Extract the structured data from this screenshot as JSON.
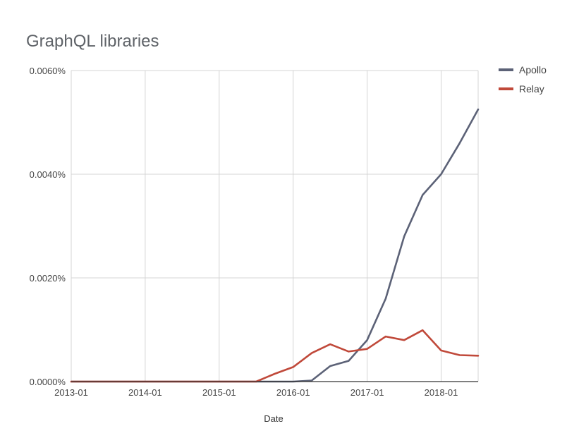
{
  "chart_data": {
    "type": "line",
    "title": "GraphQL libraries",
    "xlabel": "Date",
    "ylabel": "",
    "x_start": "2013-01",
    "x_end": "2018-07",
    "x_ticks": [
      "2013-01",
      "2014-01",
      "2015-01",
      "2016-01",
      "2017-01",
      "2018-01"
    ],
    "ylim": [
      0,
      0.006
    ],
    "y_ticks": [
      0,
      0.002,
      0.004,
      0.006
    ],
    "y_tick_labels": [
      "0.0000%",
      "0.0020%",
      "0.0040%",
      "0.0060%"
    ],
    "grid": true,
    "legend_position": "right",
    "series": [
      {
        "name": "Apollo",
        "color": "#5c6277",
        "points": [
          [
            "2013-01",
            0
          ],
          [
            "2014-01",
            0
          ],
          [
            "2015-01",
            0
          ],
          [
            "2016-01",
            0
          ],
          [
            "2016-04",
            2e-05
          ],
          [
            "2016-07",
            0.0003
          ],
          [
            "2016-10",
            0.0004
          ],
          [
            "2017-01",
            0.0008
          ],
          [
            "2017-04",
            0.0016
          ],
          [
            "2017-07",
            0.0028
          ],
          [
            "2017-10",
            0.0036
          ],
          [
            "2018-01",
            0.004
          ],
          [
            "2018-04",
            0.0046
          ],
          [
            "2018-07",
            0.00525
          ]
        ]
      },
      {
        "name": "Relay",
        "color": "#c0493a",
        "points": [
          [
            "2013-01",
            0
          ],
          [
            "2014-01",
            0
          ],
          [
            "2015-01",
            0
          ],
          [
            "2015-07",
            0
          ],
          [
            "2015-10",
            0.00015
          ],
          [
            "2016-01",
            0.00028
          ],
          [
            "2016-04",
            0.00055
          ],
          [
            "2016-07",
            0.00072
          ],
          [
            "2016-10",
            0.00058
          ],
          [
            "2017-01",
            0.00063
          ],
          [
            "2017-04",
            0.00087
          ],
          [
            "2017-07",
            0.0008
          ],
          [
            "2017-10",
            0.00099
          ],
          [
            "2018-01",
            0.0006
          ],
          [
            "2018-04",
            0.00051
          ],
          [
            "2018-07",
            0.0005
          ]
        ]
      }
    ]
  }
}
